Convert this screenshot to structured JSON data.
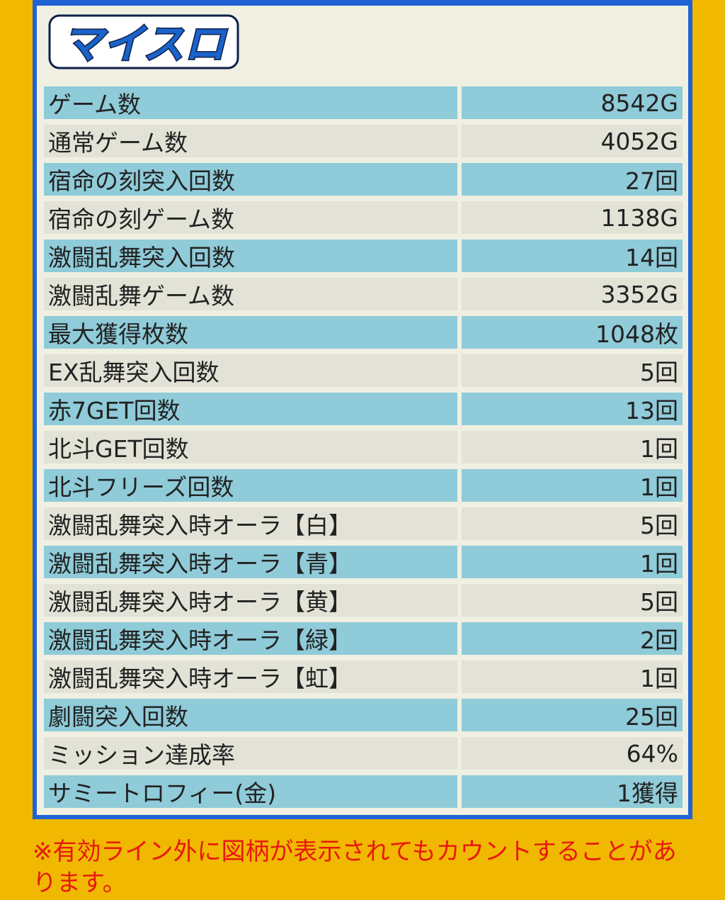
{
  "logo": {
    "text": "マイスロ",
    "fill": "#1a63c9",
    "outline": "#0d1f4a"
  },
  "colors": {
    "background": "#f0b800",
    "panel_border": "#1f63d6",
    "row_blue": "#8fcbd8",
    "row_gray": "#e3e2d6",
    "note": "#e8180e"
  },
  "stats": [
    {
      "label": "ゲーム数",
      "value": "8542G"
    },
    {
      "label": "通常ゲーム数",
      "value": "4052G"
    },
    {
      "label": "宿命の刻突入回数",
      "value": "27回"
    },
    {
      "label": "宿命の刻ゲーム数",
      "value": "1138G"
    },
    {
      "label": "激闘乱舞突入回数",
      "value": "14回"
    },
    {
      "label": "激闘乱舞ゲーム数",
      "value": "3352G"
    },
    {
      "label": "最大獲得枚数",
      "value": "1048枚"
    },
    {
      "label": "EX乱舞突入回数",
      "value": "5回"
    },
    {
      "label": "赤7GET回数",
      "value": "13回"
    },
    {
      "label": "北斗GET回数",
      "value": "1回"
    },
    {
      "label": "北斗フリーズ回数",
      "value": "1回"
    },
    {
      "label": "激闘乱舞突入時オーラ【白】",
      "value": "5回"
    },
    {
      "label": "激闘乱舞突入時オーラ【青】",
      "value": "1回"
    },
    {
      "label": "激闘乱舞突入時オーラ【黄】",
      "value": "5回"
    },
    {
      "label": "激闘乱舞突入時オーラ【緑】",
      "value": "2回"
    },
    {
      "label": "激闘乱舞突入時オーラ【虹】",
      "value": "1回"
    },
    {
      "label": "劇闘突入回数",
      "value": "25回"
    },
    {
      "label": "ミッション達成率",
      "value": "64%"
    },
    {
      "label": "サミートロフィー(金)",
      "value": "1獲得"
    }
  ],
  "note": "※有効ライン外に図柄が表示されてもカウントすることがあります。"
}
